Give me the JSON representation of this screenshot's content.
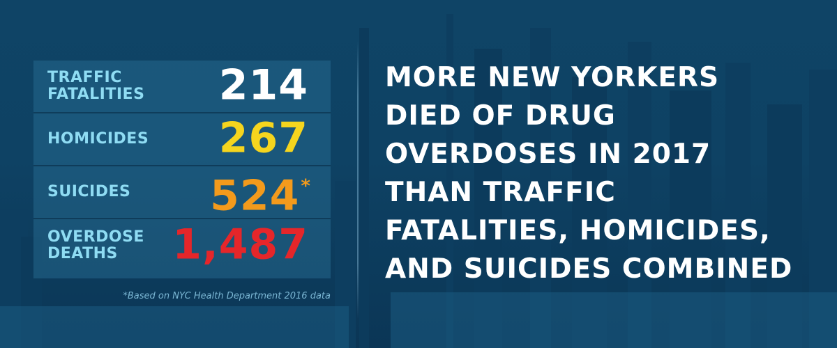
{
  "stats": [
    {
      "label": "TRAFFIC\nFATALITIES",
      "value": "214",
      "color": "#ffffff",
      "asterisk": ""
    },
    {
      "label": "HOMICIDES",
      "value": "267",
      "color": "#f5d51e",
      "asterisk": ""
    },
    {
      "label": "SUICIDES",
      "value": "524",
      "color": "#f39a1c",
      "asterisk": "*"
    },
    {
      "label": "OVERDOSE\nDEATHS",
      "value": "1,487",
      "color": "#e5262a",
      "asterisk": ""
    }
  ],
  "footnote": "*Based on NYC Health Department 2016 data",
  "headline": "MORE NEW YORKERS\nDIED OF DRUG\nOVERDOSES IN 2017\nTHAN TRAFFIC\nFATALITIES, HOMICIDES,\nAND SUICIDES COMBINED",
  "colors": {
    "background": "#0e4264",
    "label": "#8fdcf3",
    "headline": "#ffffff"
  }
}
